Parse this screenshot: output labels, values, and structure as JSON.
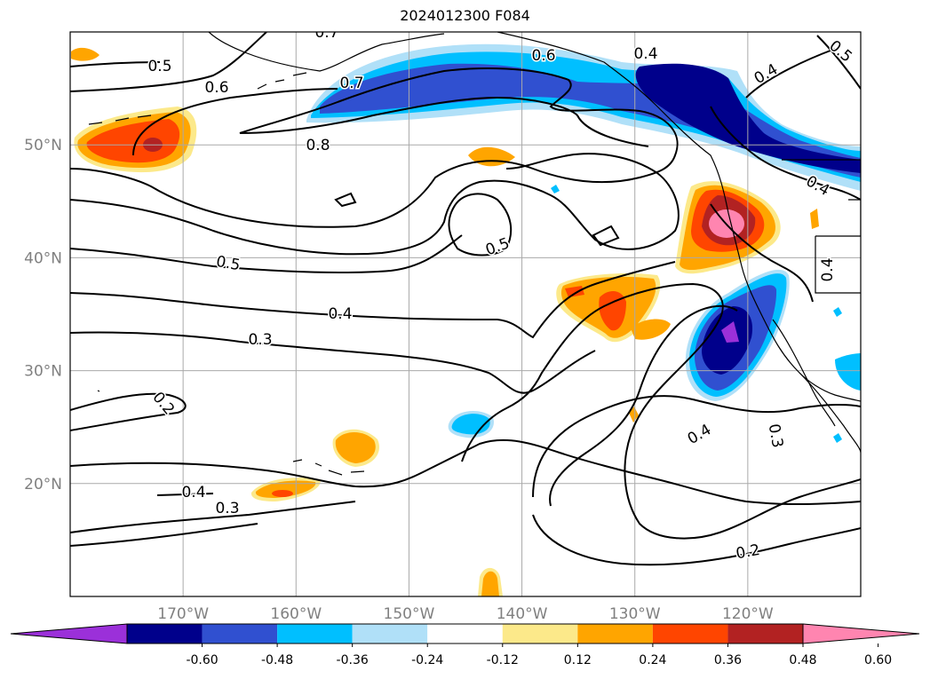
{
  "title": "2024012300 F084",
  "map": {
    "lat_ticks": [
      {
        "value": 50,
        "label": "50°N"
      },
      {
        "value": 40,
        "label": "40°N"
      },
      {
        "value": 30,
        "label": "30°N"
      },
      {
        "value": 20,
        "label": "20°N"
      }
    ],
    "lon_ticks": [
      {
        "value": -170,
        "label": "170°W"
      },
      {
        "value": -160,
        "label": "160°W"
      },
      {
        "value": -150,
        "label": "150°W"
      },
      {
        "value": -140,
        "label": "140°W"
      },
      {
        "value": -130,
        "label": "130°W"
      },
      {
        "value": -120,
        "label": "120°W"
      }
    ],
    "extent": {
      "lon_min": -180,
      "lon_max": -110,
      "lat_min": 10,
      "lat_max": 60
    },
    "contour_labels": [
      "0.7",
      "0.5",
      "0.6",
      "0.7",
      "0.6",
      "0.4",
      "0.4",
      "0.5",
      "0.8",
      "0.4",
      "0.5",
      "0.5",
      "0.4",
      "0.4",
      "0.3",
      "0.2",
      "0.4",
      "0.3",
      "0.4",
      "0.3",
      "0.2"
    ]
  },
  "colorbar": {
    "colors": [
      "#9b30d9",
      "#00008b",
      "#3050d0",
      "#00bfff",
      "#b0e0f8",
      "#ffffff",
      "#fce98a",
      "#ffa500",
      "#ff4500",
      "#b22222",
      "#ff85b0"
    ],
    "labels": [
      "-0.60",
      "-0.48",
      "-0.36",
      "-0.24",
      "-0.12",
      "0.12",
      "0.24",
      "0.36",
      "0.48",
      "0.60"
    ]
  }
}
